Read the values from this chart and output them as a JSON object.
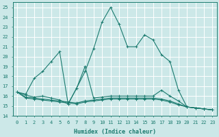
{
  "xlabel": "Humidex (Indice chaleur)",
  "bg_color": "#cce8e8",
  "line_color": "#1a7a6e",
  "grid_color": "#b0d8d8",
  "xlim": [
    -0.5,
    23.5
  ],
  "ylim": [
    14,
    25.5
  ],
  "yticks": [
    14,
    15,
    16,
    17,
    18,
    19,
    20,
    21,
    22,
    23,
    24,
    25
  ],
  "xticks": [
    0,
    1,
    2,
    3,
    4,
    5,
    6,
    7,
    8,
    9,
    10,
    11,
    12,
    13,
    14,
    15,
    16,
    17,
    18,
    19,
    20,
    21,
    22,
    23
  ],
  "series": [
    {
      "x": [
        0,
        1,
        2,
        3,
        4,
        5,
        6,
        7,
        8,
        9,
        10,
        11,
        12,
        13,
        14,
        15,
        16,
        17,
        18,
        19,
        20,
        21,
        22,
        23
      ],
      "y": [
        16.4,
        16.2,
        17.8,
        18.5,
        19.5,
        20.5,
        15.2,
        16.8,
        18.5,
        20.8,
        23.5,
        25.0,
        23.3,
        21.0,
        21.0,
        22.2,
        21.7,
        20.2,
        19.5,
        16.6,
        14.9,
        14.8,
        14.7,
        14.6
      ]
    },
    {
      "x": [
        0,
        1,
        2,
        3,
        4,
        5,
        6,
        7,
        8,
        9,
        10,
        11,
        12,
        13,
        14,
        15,
        16,
        17,
        18,
        19,
        20,
        21,
        22,
        23
      ],
      "y": [
        16.4,
        15.9,
        15.8,
        15.7,
        15.6,
        15.5,
        15.4,
        15.3,
        15.5,
        15.6,
        15.7,
        15.8,
        15.8,
        15.8,
        15.8,
        15.8,
        15.8,
        15.7,
        15.5,
        15.2,
        14.9,
        14.8,
        14.7,
        14.6
      ]
    },
    {
      "x": [
        0,
        1,
        2,
        3,
        4,
        5,
        6,
        7,
        8,
        9,
        10,
        11,
        12,
        13,
        14,
        15,
        16,
        17,
        18,
        19,
        20,
        21,
        22,
        23
      ],
      "y": [
        16.4,
        15.8,
        15.7,
        15.6,
        15.5,
        15.4,
        15.3,
        15.2,
        15.4,
        15.5,
        15.6,
        15.7,
        15.7,
        15.7,
        15.7,
        15.7,
        15.7,
        15.6,
        15.4,
        15.1,
        14.9,
        14.8,
        14.7,
        14.6
      ]
    },
    {
      "x": [
        0,
        1,
        2,
        3,
        4,
        5,
        6,
        7,
        8,
        9,
        10,
        11,
        12,
        13,
        14,
        15,
        16,
        17,
        18,
        19,
        20,
        21,
        22,
        23
      ],
      "y": [
        16.4,
        16.1,
        15.9,
        16.0,
        15.8,
        15.6,
        15.2,
        16.8,
        19.0,
        15.8,
        15.9,
        16.0,
        16.0,
        16.0,
        16.0,
        16.0,
        16.0,
        16.6,
        16.0,
        15.5,
        14.9,
        14.8,
        14.7,
        14.6
      ]
    }
  ]
}
